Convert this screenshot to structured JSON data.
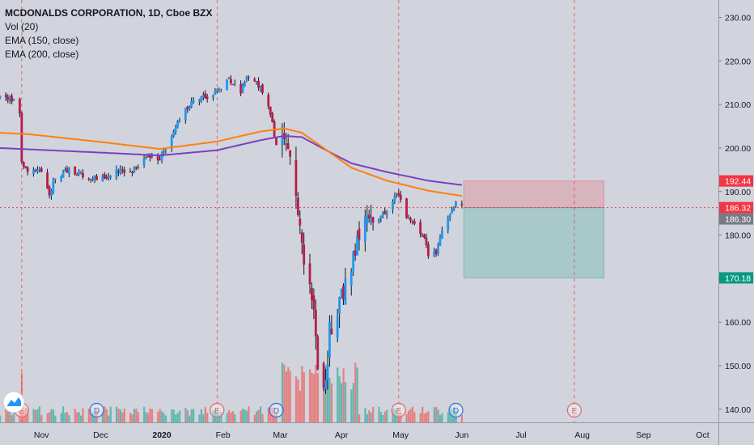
{
  "chart_data": {
    "type": "candlestick",
    "symbol_title": "MCDONALDS CORPORATION, 1D, Cboe BZX",
    "indicators": [
      {
        "label": "Vol (20)"
      },
      {
        "label": "EMA (150, close)",
        "color": "#ff7f0e"
      },
      {
        "label": "EMA (200, close)",
        "color": "#7b3fc4"
      }
    ],
    "y_axis": {
      "min": 137,
      "max": 234,
      "ticks": [
        140,
        150,
        160,
        170,
        180,
        190,
        200,
        210,
        220,
        230
      ],
      "tick_labels": [
        "140.00",
        "150.00",
        "160.00",
        "170.00",
        "180.00",
        "190.00",
        "200.00",
        "210.00",
        "220.00",
        "230.00"
      ]
    },
    "x_axis": {
      "labels": [
        "Nov",
        "Dec",
        "2020",
        "Feb",
        "Mar",
        "Apr",
        "May",
        "Jun",
        "Jul",
        "Aug",
        "Sep",
        "Oct"
      ],
      "start": "2019-10-11",
      "end": "2020-10-09"
    },
    "price_markers": [
      {
        "label": "192.44",
        "value": 192.44,
        "color": "#f23645"
      },
      {
        "label": "186.32",
        "value": 186.32,
        "color": "#f23645"
      },
      {
        "label": "186.30",
        "value": 186.3,
        "color": "#787b86"
      },
      {
        "label": "170.18",
        "value": 170.18,
        "color": "#089981"
      }
    ],
    "position_tool": {
      "start": "2020-06-02",
      "end": "2020-08-12",
      "entry": 186.32,
      "stop": 192.44,
      "target": 170.18
    },
    "event_markers": [
      {
        "letter": "E",
        "date": "2019-10-22",
        "type": "earnings"
      },
      {
        "letter": "D",
        "date": "2019-11-29",
        "type": "dividend"
      },
      {
        "letter": "E",
        "date": "2020-01-29",
        "type": "earnings"
      },
      {
        "letter": "D",
        "date": "2020-02-28",
        "type": "dividend"
      },
      {
        "letter": "E",
        "date": "2020-04-30",
        "type": "earnings"
      },
      {
        "letter": "D",
        "date": "2020-05-29",
        "type": "dividend"
      },
      {
        "letter": "E",
        "date": "2020-07-28",
        "type": "earnings"
      }
    ],
    "price_keypoints": [
      [
        "2019-10-11",
        212.5
      ],
      [
        "2019-10-18",
        211
      ],
      [
        "2019-10-21",
        208
      ],
      [
        "2019-10-22",
        197.5
      ],
      [
        "2019-10-25",
        194
      ],
      [
        "2019-10-31",
        195
      ],
      [
        "2019-11-05",
        189.5
      ],
      [
        "2019-11-08",
        193.5
      ],
      [
        "2019-11-15",
        195
      ],
      [
        "2019-11-22",
        194
      ],
      [
        "2019-11-29",
        193
      ],
      [
        "2019-12-05",
        193.5
      ],
      [
        "2019-12-10",
        195
      ],
      [
        "2019-12-16",
        194.5
      ],
      [
        "2019-12-24",
        198
      ],
      [
        "2019-12-31",
        197.5
      ],
      [
        "2020-01-06",
        203
      ],
      [
        "2020-01-10",
        207
      ],
      [
        "2020-01-17",
        211
      ],
      [
        "2020-01-24",
        212
      ],
      [
        "2020-01-29",
        213
      ],
      [
        "2020-02-04",
        216
      ],
      [
        "2020-02-10",
        213
      ],
      [
        "2020-02-14",
        217
      ],
      [
        "2020-02-20",
        214
      ],
      [
        "2020-02-25",
        208
      ],
      [
        "2020-02-28",
        200
      ],
      [
        "2020-03-03",
        203
      ],
      [
        "2020-03-06",
        196
      ],
      [
        "2020-03-09",
        188
      ],
      [
        "2020-03-12",
        178
      ],
      [
        "2020-03-16",
        169
      ],
      [
        "2020-03-18",
        163
      ],
      [
        "2020-03-20",
        150
      ],
      [
        "2020-03-23",
        142.5
      ],
      [
        "2020-03-26",
        158
      ],
      [
        "2020-03-31",
        165
      ],
      [
        "2020-04-06",
        172
      ],
      [
        "2020-04-09",
        180
      ],
      [
        "2020-04-14",
        185
      ],
      [
        "2020-04-20",
        183
      ],
      [
        "2020-04-24",
        186
      ],
      [
        "2020-04-29",
        190
      ],
      [
        "2020-05-04",
        184
      ],
      [
        "2020-05-08",
        182
      ],
      [
        "2020-05-13",
        179
      ],
      [
        "2020-05-15",
        175
      ],
      [
        "2020-05-19",
        176
      ],
      [
        "2020-05-22",
        181
      ],
      [
        "2020-05-27",
        186
      ],
      [
        "2020-05-29",
        187.5
      ],
      [
        "2020-06-01",
        186.3
      ]
    ],
    "ema150_keypoints": [
      [
        "2019-10-11",
        203.5
      ],
      [
        "2019-10-25",
        203.2
      ],
      [
        "2019-11-29",
        201.5
      ],
      [
        "2019-12-31",
        199.8
      ],
      [
        "2020-01-29",
        201.5
      ],
      [
        "2020-02-20",
        203.8
      ],
      [
        "2020-03-03",
        204.5
      ],
      [
        "2020-03-12",
        203.5
      ],
      [
        "2020-03-23",
        200
      ],
      [
        "2020-04-06",
        195.5
      ],
      [
        "2020-04-24",
        192.5
      ],
      [
        "2020-05-15",
        190.2
      ],
      [
        "2020-06-01",
        189
      ]
    ],
    "ema200_keypoints": [
      [
        "2019-10-11",
        200
      ],
      [
        "2019-11-29",
        199
      ],
      [
        "2019-12-31",
        198.3
      ],
      [
        "2020-01-29",
        199.5
      ],
      [
        "2020-02-20",
        201.8
      ],
      [
        "2020-03-03",
        202.8
      ],
      [
        "2020-03-12",
        202.5
      ],
      [
        "2020-03-23",
        199.8
      ],
      [
        "2020-04-06",
        196.5
      ],
      [
        "2020-04-24",
        194.5
      ],
      [
        "2020-05-15",
        192.5
      ],
      [
        "2020-06-01",
        191.5
      ]
    ],
    "grid": false,
    "colors": {
      "up": "#2196f3",
      "down": "#b71c48",
      "vol_up": "#26a69a",
      "vol_down": "#ef5350",
      "earnings_line": "#e06666",
      "price_line": "#f23645"
    }
  }
}
